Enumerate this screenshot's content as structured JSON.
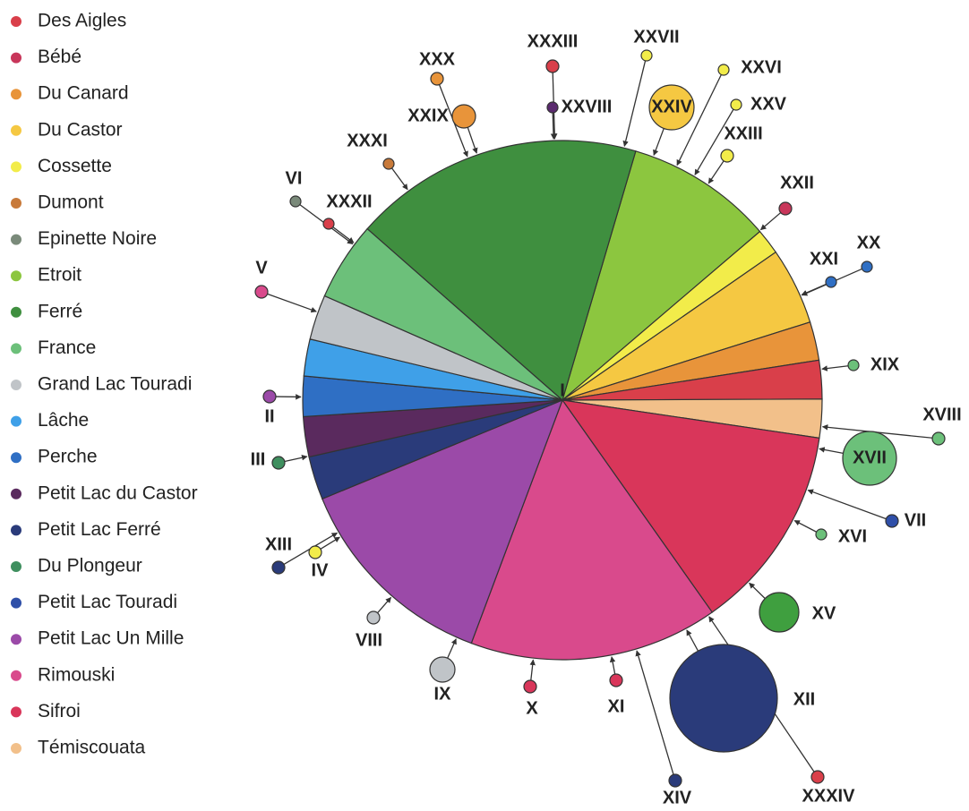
{
  "legend": [
    {
      "name": "Des Aigles",
      "color": "#d93f4a"
    },
    {
      "name": "Bébé",
      "color": "#c8365a"
    },
    {
      "name": "Du Canard",
      "color": "#e8943a"
    },
    {
      "name": "Du Castor",
      "color": "#f5c842"
    },
    {
      "name": "Cossette",
      "color": "#f2ec4a"
    },
    {
      "name": "Dumont",
      "color": "#c87a3a"
    },
    {
      "name": "Epinette Noire",
      "color": "#7a8a7a"
    },
    {
      "name": "Etroit",
      "color": "#8cc63f"
    },
    {
      "name": "Ferré",
      "color": "#3f8f3f"
    },
    {
      "name": "France",
      "color": "#6cc07a"
    },
    {
      "name": "Grand Lac Touradi",
      "color": "#c0c4c8"
    },
    {
      "name": "Lâche",
      "color": "#3fa0e8"
    },
    {
      "name": "Perche",
      "color": "#2f6fc4"
    },
    {
      "name": "Petit Lac du Castor",
      "color": "#5a2a5e"
    },
    {
      "name": "Petit Lac Ferré",
      "color": "#2a3b7a"
    },
    {
      "name": "Du Plongeur",
      "color": "#3f8f5f"
    },
    {
      "name": "Petit Lac Touradi",
      "color": "#2f4fa8"
    },
    {
      "name": "Petit Lac Un Mille",
      "color": "#9b4aa8"
    },
    {
      "name": "Rimouski",
      "color": "#d94a8c"
    },
    {
      "name": "Sifroi",
      "color": "#d9365a"
    },
    {
      "name": "Témiscouata",
      "color": "#f2c08a"
    }
  ],
  "slices": [
    {
      "color": "#8cc63f",
      "value": 9.2
    },
    {
      "color": "#f2ec4a",
      "value": 1.6
    },
    {
      "color": "#f5c842",
      "value": 4.8
    },
    {
      "color": "#e8943a",
      "value": 2.4
    },
    {
      "color": "#d93f4a",
      "value": 2.4
    },
    {
      "color": "#f2c08a",
      "value": 2.4
    },
    {
      "color": "#d9365a",
      "value": 12.9
    },
    {
      "color": "#d94a8c",
      "value": 15.5
    },
    {
      "color": "#9b4aa8",
      "value": 13.1
    },
    {
      "color": "#2a3b7a",
      "value": 2.7
    },
    {
      "color": "#5a2a5e",
      "value": 2.5
    },
    {
      "color": "#2f6fc4",
      "value": 2.5
    },
    {
      "color": "#3fa0e8",
      "value": 2.3
    },
    {
      "color": "#c0c4c8",
      "value": 2.8
    },
    {
      "color": "#6cc07a",
      "value": 4.9
    },
    {
      "color": "#3f8f3f",
      "value": 18.1
    }
  ],
  "center_label": "I",
  "nodes": [
    {
      "label": "XXXIII",
      "color": "#d93f4a"
    },
    {
      "label": "XXVIII",
      "color": "#5a2a6e"
    },
    {
      "label": "XXX",
      "color": "#e8943a"
    },
    {
      "label": "XXIX",
      "color": "#e8943a"
    },
    {
      "label": "XXVII",
      "color": "#f2ec4a"
    },
    {
      "label": "XXVI",
      "color": "#f2ec4a"
    },
    {
      "label": "XXIV",
      "color": "#f5c842"
    },
    {
      "label": "XXV",
      "color": "#f2ec4a"
    },
    {
      "label": "XXIII",
      "color": "#f2ec4a"
    },
    {
      "label": "XXXI",
      "color": "#c87a3a"
    },
    {
      "label": "VI",
      "color": "#7a8a7a"
    },
    {
      "label": "XXXII",
      "color": "#d93f4a"
    },
    {
      "label": "XXII",
      "color": "#c8365a"
    },
    {
      "label": "XXI",
      "color": "#2f6fc4"
    },
    {
      "label": "XX",
      "color": "#2f6fc4"
    },
    {
      "label": "V",
      "color": "#d94a8c"
    },
    {
      "label": "XIX",
      "color": "#6cc07a"
    },
    {
      "label": "II",
      "color": "#9b4aa8"
    },
    {
      "label": "XVIII",
      "color": "#6cc07a"
    },
    {
      "label": "XVII",
      "color": "#6cc07a"
    },
    {
      "label": "III",
      "color": "#3f8f5f"
    },
    {
      "label": "VII",
      "color": "#2f4fa8"
    },
    {
      "label": "XVI",
      "color": "#6cc07a"
    },
    {
      "label": "XIII",
      "color": "#2a3b7a"
    },
    {
      "label": "IV",
      "color": "#f2ec4a"
    },
    {
      "label": "XV",
      "color": "#3f9f3f"
    },
    {
      "label": "VIII",
      "color": "#c0c4c8"
    },
    {
      "label": "IX",
      "color": "#c0c4c8"
    },
    {
      "label": "X",
      "color": "#d9365a"
    },
    {
      "label": "XI",
      "color": "#d9365a"
    },
    {
      "label": "XII",
      "color": "#2a3b7a"
    },
    {
      "label": "XIV",
      "color": "#2a3b7a"
    },
    {
      "label": "XXXIV",
      "color": "#d93f4a"
    }
  ]
}
